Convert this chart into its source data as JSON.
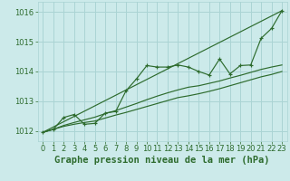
{
  "title": "Graphe pression niveau de la mer (hPa)",
  "bg_color": "#cceaea",
  "grid_color": "#aad4d4",
  "line_color": "#2d6b2d",
  "xlim": [
    -0.5,
    23.5
  ],
  "ylim": [
    1011.65,
    1016.35
  ],
  "xticks": [
    0,
    1,
    2,
    3,
    4,
    5,
    6,
    7,
    8,
    9,
    10,
    11,
    12,
    13,
    14,
    15,
    16,
    17,
    18,
    19,
    20,
    21,
    22,
    23
  ],
  "yticks": [
    1012,
    1013,
    1014,
    1015,
    1016
  ],
  "x": [
    0,
    1,
    2,
    3,
    4,
    5,
    6,
    7,
    8,
    9,
    10,
    11,
    12,
    13,
    14,
    15,
    16,
    17,
    18,
    19,
    20,
    21,
    22,
    23
  ],
  "y_main": [
    1011.95,
    1012.05,
    1012.45,
    1012.55,
    1012.22,
    1012.25,
    1012.6,
    1012.65,
    1013.35,
    1013.75,
    1014.2,
    1014.15,
    1014.15,
    1014.22,
    1014.15,
    1014.0,
    1013.88,
    1014.42,
    1013.92,
    1014.2,
    1014.22,
    1015.12,
    1015.45,
    1016.05
  ],
  "y_low1": [
    1011.95,
    1012.05,
    1012.15,
    1012.22,
    1012.28,
    1012.33,
    1012.43,
    1012.53,
    1012.62,
    1012.72,
    1012.82,
    1012.92,
    1013.02,
    1013.12,
    1013.18,
    1013.25,
    1013.33,
    1013.42,
    1013.52,
    1013.62,
    1013.72,
    1013.82,
    1013.9,
    1014.0
  ],
  "y_low2": [
    1011.95,
    1012.05,
    1012.18,
    1012.28,
    1012.37,
    1012.46,
    1012.58,
    1012.68,
    1012.8,
    1012.92,
    1013.05,
    1013.17,
    1013.28,
    1013.38,
    1013.47,
    1013.52,
    1013.6,
    1013.68,
    1013.78,
    1013.87,
    1013.97,
    1014.07,
    1014.15,
    1014.22
  ],
  "title_fontsize": 7.5,
  "tick_fontsize": 6.0
}
